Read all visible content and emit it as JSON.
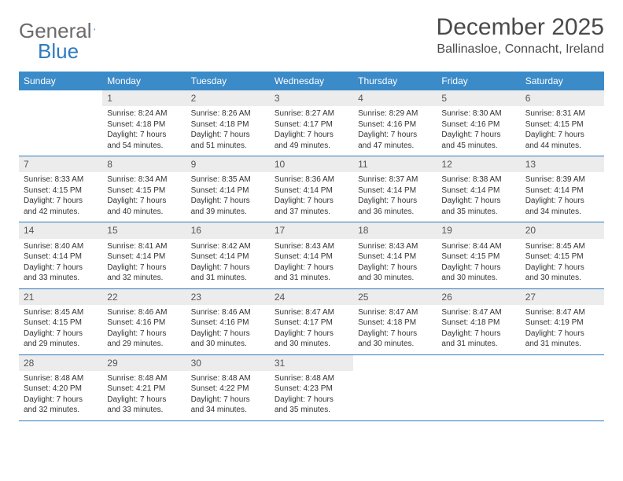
{
  "logo": {
    "text_general": "General",
    "text_blue": "Blue"
  },
  "header": {
    "month_title": "December 2025",
    "location": "Ballinasloe, Connacht, Ireland"
  },
  "colors": {
    "header_bg": "#3b8bc9",
    "header_text": "#ffffff",
    "daynum_bg": "#ececec",
    "border": "#2f7bbf",
    "body_text": "#333333",
    "logo_gray": "#6b6b6b",
    "logo_blue": "#2f7bbf"
  },
  "typography": {
    "month_title_fontsize": 30,
    "location_fontsize": 16,
    "day_header_fontsize": 12,
    "cell_fontsize": 10,
    "daynum_fontsize": 12
  },
  "day_names": [
    "Sunday",
    "Monday",
    "Tuesday",
    "Wednesday",
    "Thursday",
    "Friday",
    "Saturday"
  ],
  "weeks": [
    [
      {
        "empty": true
      },
      {
        "day": "1",
        "sunrise": "Sunrise: 8:24 AM",
        "sunset": "Sunset: 4:18 PM",
        "daylight": "Daylight: 7 hours and 54 minutes."
      },
      {
        "day": "2",
        "sunrise": "Sunrise: 8:26 AM",
        "sunset": "Sunset: 4:18 PM",
        "daylight": "Daylight: 7 hours and 51 minutes."
      },
      {
        "day": "3",
        "sunrise": "Sunrise: 8:27 AM",
        "sunset": "Sunset: 4:17 PM",
        "daylight": "Daylight: 7 hours and 49 minutes."
      },
      {
        "day": "4",
        "sunrise": "Sunrise: 8:29 AM",
        "sunset": "Sunset: 4:16 PM",
        "daylight": "Daylight: 7 hours and 47 minutes."
      },
      {
        "day": "5",
        "sunrise": "Sunrise: 8:30 AM",
        "sunset": "Sunset: 4:16 PM",
        "daylight": "Daylight: 7 hours and 45 minutes."
      },
      {
        "day": "6",
        "sunrise": "Sunrise: 8:31 AM",
        "sunset": "Sunset: 4:15 PM",
        "daylight": "Daylight: 7 hours and 44 minutes."
      }
    ],
    [
      {
        "day": "7",
        "sunrise": "Sunrise: 8:33 AM",
        "sunset": "Sunset: 4:15 PM",
        "daylight": "Daylight: 7 hours and 42 minutes."
      },
      {
        "day": "8",
        "sunrise": "Sunrise: 8:34 AM",
        "sunset": "Sunset: 4:15 PM",
        "daylight": "Daylight: 7 hours and 40 minutes."
      },
      {
        "day": "9",
        "sunrise": "Sunrise: 8:35 AM",
        "sunset": "Sunset: 4:14 PM",
        "daylight": "Daylight: 7 hours and 39 minutes."
      },
      {
        "day": "10",
        "sunrise": "Sunrise: 8:36 AM",
        "sunset": "Sunset: 4:14 PM",
        "daylight": "Daylight: 7 hours and 37 minutes."
      },
      {
        "day": "11",
        "sunrise": "Sunrise: 8:37 AM",
        "sunset": "Sunset: 4:14 PM",
        "daylight": "Daylight: 7 hours and 36 minutes."
      },
      {
        "day": "12",
        "sunrise": "Sunrise: 8:38 AM",
        "sunset": "Sunset: 4:14 PM",
        "daylight": "Daylight: 7 hours and 35 minutes."
      },
      {
        "day": "13",
        "sunrise": "Sunrise: 8:39 AM",
        "sunset": "Sunset: 4:14 PM",
        "daylight": "Daylight: 7 hours and 34 minutes."
      }
    ],
    [
      {
        "day": "14",
        "sunrise": "Sunrise: 8:40 AM",
        "sunset": "Sunset: 4:14 PM",
        "daylight": "Daylight: 7 hours and 33 minutes."
      },
      {
        "day": "15",
        "sunrise": "Sunrise: 8:41 AM",
        "sunset": "Sunset: 4:14 PM",
        "daylight": "Daylight: 7 hours and 32 minutes."
      },
      {
        "day": "16",
        "sunrise": "Sunrise: 8:42 AM",
        "sunset": "Sunset: 4:14 PM",
        "daylight": "Daylight: 7 hours and 31 minutes."
      },
      {
        "day": "17",
        "sunrise": "Sunrise: 8:43 AM",
        "sunset": "Sunset: 4:14 PM",
        "daylight": "Daylight: 7 hours and 31 minutes."
      },
      {
        "day": "18",
        "sunrise": "Sunrise: 8:43 AM",
        "sunset": "Sunset: 4:14 PM",
        "daylight": "Daylight: 7 hours and 30 minutes."
      },
      {
        "day": "19",
        "sunrise": "Sunrise: 8:44 AM",
        "sunset": "Sunset: 4:15 PM",
        "daylight": "Daylight: 7 hours and 30 minutes."
      },
      {
        "day": "20",
        "sunrise": "Sunrise: 8:45 AM",
        "sunset": "Sunset: 4:15 PM",
        "daylight": "Daylight: 7 hours and 30 minutes."
      }
    ],
    [
      {
        "day": "21",
        "sunrise": "Sunrise: 8:45 AM",
        "sunset": "Sunset: 4:15 PM",
        "daylight": "Daylight: 7 hours and 29 minutes."
      },
      {
        "day": "22",
        "sunrise": "Sunrise: 8:46 AM",
        "sunset": "Sunset: 4:16 PM",
        "daylight": "Daylight: 7 hours and 29 minutes."
      },
      {
        "day": "23",
        "sunrise": "Sunrise: 8:46 AM",
        "sunset": "Sunset: 4:16 PM",
        "daylight": "Daylight: 7 hours and 30 minutes."
      },
      {
        "day": "24",
        "sunrise": "Sunrise: 8:47 AM",
        "sunset": "Sunset: 4:17 PM",
        "daylight": "Daylight: 7 hours and 30 minutes."
      },
      {
        "day": "25",
        "sunrise": "Sunrise: 8:47 AM",
        "sunset": "Sunset: 4:18 PM",
        "daylight": "Daylight: 7 hours and 30 minutes."
      },
      {
        "day": "26",
        "sunrise": "Sunrise: 8:47 AM",
        "sunset": "Sunset: 4:18 PM",
        "daylight": "Daylight: 7 hours and 31 minutes."
      },
      {
        "day": "27",
        "sunrise": "Sunrise: 8:47 AM",
        "sunset": "Sunset: 4:19 PM",
        "daylight": "Daylight: 7 hours and 31 minutes."
      }
    ],
    [
      {
        "day": "28",
        "sunrise": "Sunrise: 8:48 AM",
        "sunset": "Sunset: 4:20 PM",
        "daylight": "Daylight: 7 hours and 32 minutes."
      },
      {
        "day": "29",
        "sunrise": "Sunrise: 8:48 AM",
        "sunset": "Sunset: 4:21 PM",
        "daylight": "Daylight: 7 hours and 33 minutes."
      },
      {
        "day": "30",
        "sunrise": "Sunrise: 8:48 AM",
        "sunset": "Sunset: 4:22 PM",
        "daylight": "Daylight: 7 hours and 34 minutes."
      },
      {
        "day": "31",
        "sunrise": "Sunrise: 8:48 AM",
        "sunset": "Sunset: 4:23 PM",
        "daylight": "Daylight: 7 hours and 35 minutes."
      },
      {
        "empty": true
      },
      {
        "empty": true
      },
      {
        "empty": true
      }
    ]
  ]
}
